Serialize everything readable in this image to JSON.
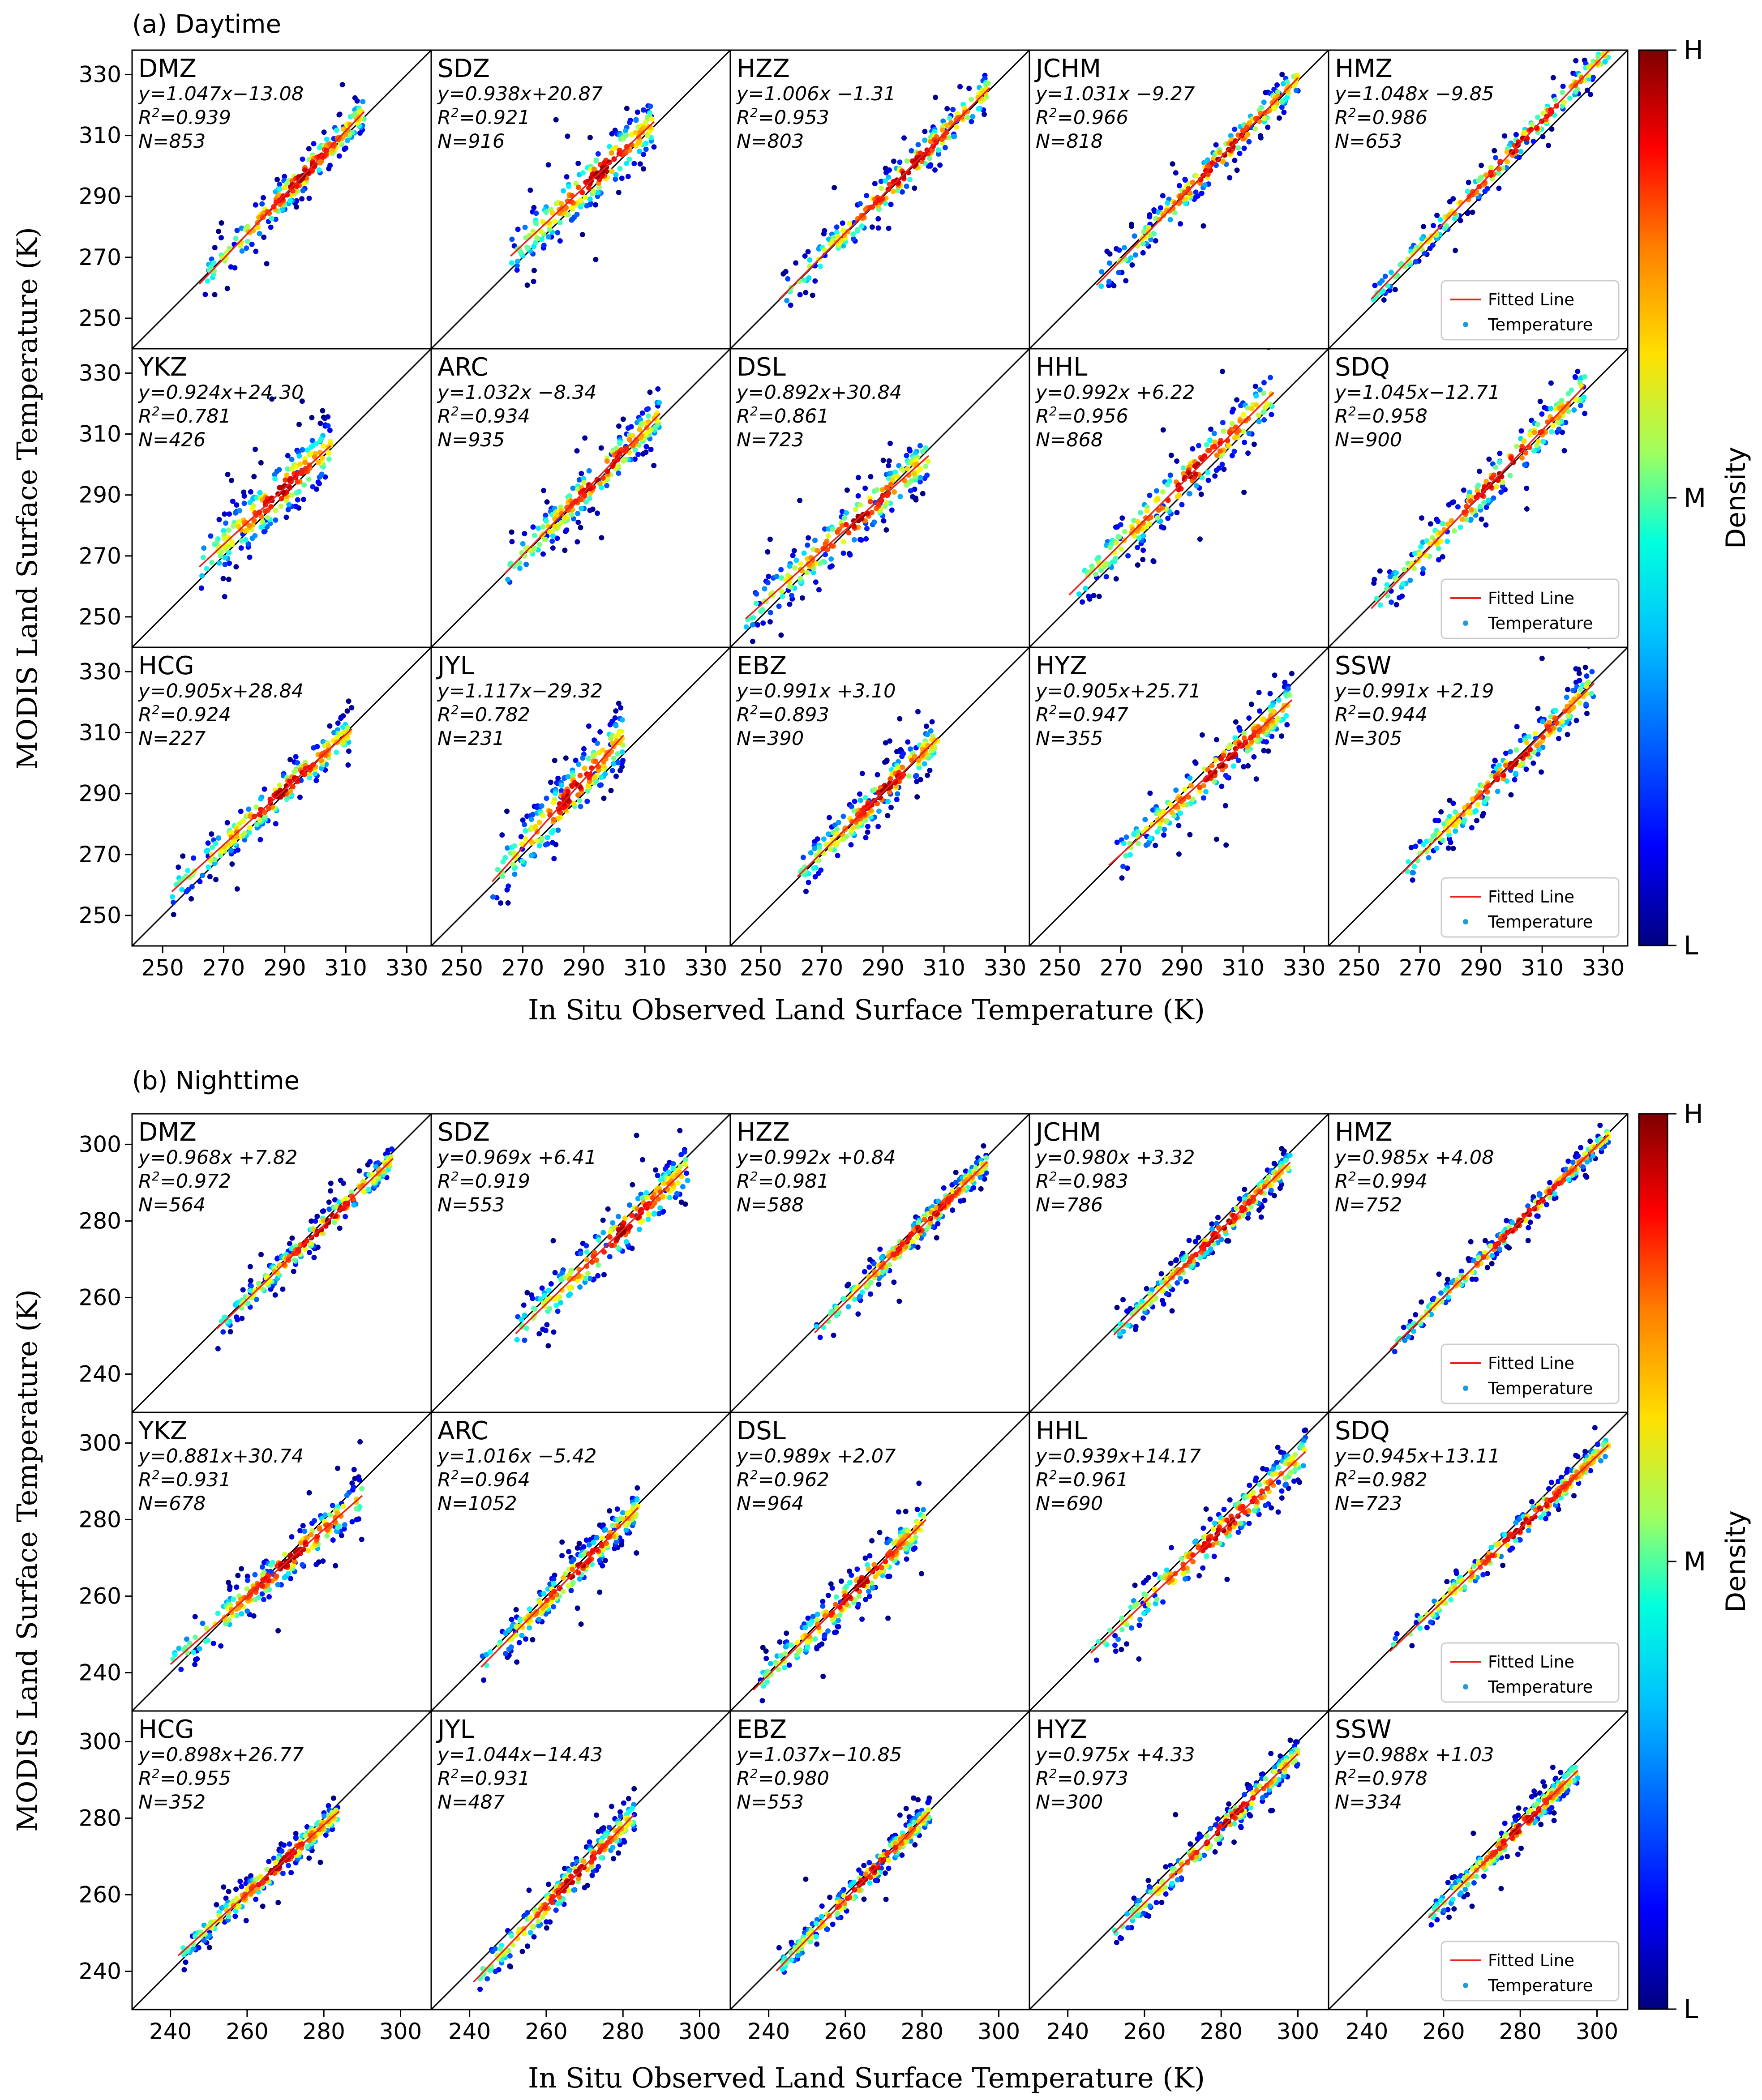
{
  "figure": {
    "x_label": "In Situ Observed Land Surface Temperature (K)",
    "y_label": "MODIS Land Surface Temperature (K)",
    "colorbar_title": "Density",
    "colorbar_labels": [
      "H",
      "M",
      "L"
    ],
    "legend_entries": [
      "Fitted Line",
      "Temperature"
    ],
    "colors": {
      "fitted_line": "#e8231f",
      "one_to_one": "#000000",
      "frame": "#000000"
    },
    "colormap": [
      "#00007f",
      "#0000ff",
      "#007fff",
      "#00ffff",
      "#7fff7f",
      "#ffff00",
      "#ff7f00",
      "#ff0000",
      "#7f0000"
    ]
  },
  "chart_data": [
    {
      "type": "scatter",
      "title": "(a) Daytime",
      "xlabel": "In Situ Observed Land Surface Temperature (K)",
      "ylabel": "MODIS Land Surface Temperature (K)",
      "xlim": [
        240,
        338
      ],
      "ylim": [
        240,
        338
      ],
      "xticks": [
        250,
        270,
        290,
        310,
        330
      ],
      "yticks": [
        250,
        270,
        290,
        310,
        330
      ],
      "stations": [
        {
          "name": "DMZ",
          "equation": "y=1.047x−13.08",
          "r2": "0.939",
          "n": "853",
          "slope": 1.047,
          "intercept": -13.08,
          "xmin": 262,
          "xmax": 316,
          "spread": 3.5
        },
        {
          "name": "SDZ",
          "equation": "y=0.938x+20.87",
          "r2": "0.921",
          "n": "916",
          "slope": 0.938,
          "intercept": 20.87,
          "xmin": 266,
          "xmax": 313,
          "spread": 5
        },
        {
          "name": "HZZ",
          "equation": "y=1.006x −1.31",
          "r2": "0.953",
          "n": "803",
          "slope": 1.006,
          "intercept": -1.31,
          "xmin": 256,
          "xmax": 325,
          "spread": 3.5
        },
        {
          "name": "JCHM",
          "equation": "y=1.031x −9.27",
          "r2": "0.966",
          "n": "818",
          "slope": 1.031,
          "intercept": -9.27,
          "xmin": 262,
          "xmax": 328,
          "spread": 3
        },
        {
          "name": "HMZ",
          "equation": "y=1.048x −9.85",
          "r2": "0.986",
          "n": "653",
          "slope": 1.048,
          "intercept": -9.85,
          "xmin": 254,
          "xmax": 333,
          "spread": 2.5
        },
        {
          "name": "YKZ",
          "equation": "y=0.924x+24.30",
          "r2": "0.781",
          "n": "426",
          "slope": 0.924,
          "intercept": 24.3,
          "xmin": 262,
          "xmax": 305,
          "spread": 5.5
        },
        {
          "name": "ARC",
          "equation": "y=1.032x −8.34",
          "r2": "0.934",
          "n": "935",
          "slope": 1.032,
          "intercept": -8.34,
          "xmin": 264,
          "xmax": 315,
          "spread": 4
        },
        {
          "name": "DSL",
          "equation": "y=0.892x+30.84",
          "r2": "0.861",
          "n": "723",
          "slope": 0.892,
          "intercept": 30.84,
          "xmin": 245,
          "xmax": 305,
          "spread": 4.5
        },
        {
          "name": "HHL",
          "equation": "y=0.992x +6.22",
          "r2": "0.956",
          "n": "868",
          "slope": 0.992,
          "intercept": 6.22,
          "xmin": 253,
          "xmax": 320,
          "spread": 4.5
        },
        {
          "name": "SDQ",
          "equation": "y=1.045x−12.71",
          "r2": "0.958",
          "n": "900",
          "slope": 1.045,
          "intercept": -12.71,
          "xmin": 254,
          "xmax": 324,
          "spread": 4
        },
        {
          "name": "HCG",
          "equation": "y=0.905x+28.84",
          "r2": "0.924",
          "n": "227",
          "slope": 0.905,
          "intercept": 28.84,
          "xmin": 253,
          "xmax": 312,
          "spread": 3.5
        },
        {
          "name": "JYL",
          "equation": "y=1.117x−29.32",
          "r2": "0.782",
          "n": "231",
          "slope": 1.117,
          "intercept": -29.32,
          "xmin": 260,
          "xmax": 303,
          "spread": 5.5
        },
        {
          "name": "EBZ",
          "equation": "y=0.991x +3.10",
          "r2": "0.893",
          "n": "390",
          "slope": 0.991,
          "intercept": 3.1,
          "xmin": 262,
          "xmax": 308,
          "spread": 4
        },
        {
          "name": "HYZ",
          "equation": "y=0.905x+25.71",
          "r2": "0.947",
          "n": "355",
          "slope": 0.905,
          "intercept": 25.71,
          "xmin": 266,
          "xmax": 326,
          "spread": 4
        },
        {
          "name": "SSW",
          "equation": "y=0.991x +2.19",
          "r2": "0.944",
          "n": "305",
          "slope": 0.991,
          "intercept": 2.19,
          "xmin": 264,
          "xmax": 327,
          "spread": 3.5
        }
      ]
    },
    {
      "type": "scatter",
      "title": "(b) Nighttime",
      "xlabel": "In Situ Observed Land Surface Temperature (K)",
      "ylabel": "MODIS Land Surface Temperature (K)",
      "xlim": [
        230,
        308
      ],
      "ylim": [
        230,
        308
      ],
      "xticks": [
        240,
        260,
        280,
        300
      ],
      "yticks": [
        240,
        260,
        280,
        300
      ],
      "stations": [
        {
          "name": "DMZ",
          "equation": "y=0.968x +7.82",
          "r2": "0.972",
          "n": "564",
          "slope": 0.968,
          "intercept": 7.82,
          "xmin": 252,
          "xmax": 298,
          "spread": 2
        },
        {
          "name": "SDZ",
          "equation": "y=0.969x +6.41",
          "r2": "0.919",
          "n": "553",
          "slope": 0.969,
          "intercept": 6.41,
          "xmin": 252,
          "xmax": 297,
          "spread": 3.5
        },
        {
          "name": "HZZ",
          "equation": "y=0.992x +0.84",
          "r2": "0.981",
          "n": "588",
          "slope": 0.992,
          "intercept": 0.84,
          "xmin": 252,
          "xmax": 297,
          "spread": 2
        },
        {
          "name": "JCHM",
          "equation": "y=0.980x +3.32",
          "r2": "0.983",
          "n": "786",
          "slope": 0.98,
          "intercept": 3.32,
          "xmin": 252,
          "xmax": 298,
          "spread": 2
        },
        {
          "name": "HMZ",
          "equation": "y=0.985x +4.08",
          "r2": "0.994",
          "n": "752",
          "slope": 0.985,
          "intercept": 4.08,
          "xmin": 246,
          "xmax": 303,
          "spread": 1.5
        },
        {
          "name": "YKZ",
          "equation": "y=0.881x+30.74",
          "r2": "0.931",
          "n": "678",
          "slope": 0.881,
          "intercept": 30.74,
          "xmin": 240,
          "xmax": 290,
          "spread": 3
        },
        {
          "name": "ARC",
          "equation": "y=1.016x −5.42",
          "r2": "0.964",
          "n": "1052",
          "slope": 1.016,
          "intercept": -5.42,
          "xmin": 243,
          "xmax": 284,
          "spread": 2.5
        },
        {
          "name": "DSL",
          "equation": "y=0.989x +2.07",
          "r2": "0.962",
          "n": "964",
          "slope": 0.989,
          "intercept": 2.07,
          "xmin": 236,
          "xmax": 281,
          "spread": 3
        },
        {
          "name": "HHL",
          "equation": "y=0.939x+14.17",
          "r2": "0.961",
          "n": "690",
          "slope": 0.939,
          "intercept": 14.17,
          "xmin": 246,
          "xmax": 302,
          "spread": 3
        },
        {
          "name": "SDQ",
          "equation": "y=0.945x+13.11",
          "r2": "0.982",
          "n": "723",
          "slope": 0.945,
          "intercept": 13.11,
          "xmin": 246,
          "xmax": 303,
          "spread": 2
        },
        {
          "name": "HCG",
          "equation": "y=0.898x+26.77",
          "r2": "0.955",
          "n": "352",
          "slope": 0.898,
          "intercept": 26.77,
          "xmin": 242,
          "xmax": 284,
          "spread": 2
        },
        {
          "name": "JYL",
          "equation": "y=1.044x−14.43",
          "r2": "0.931",
          "n": "487",
          "slope": 1.044,
          "intercept": -14.43,
          "xmin": 241,
          "xmax": 283,
          "spread": 2.5
        },
        {
          "name": "EBZ",
          "equation": "y=1.037x−10.85",
          "r2": "0.980",
          "n": "553",
          "slope": 1.037,
          "intercept": -10.85,
          "xmin": 242,
          "xmax": 282,
          "spread": 2
        },
        {
          "name": "HYZ",
          "equation": "y=0.975x +4.33",
          "r2": "0.973",
          "n": "300",
          "slope": 0.975,
          "intercept": 4.33,
          "xmin": 252,
          "xmax": 300,
          "spread": 2
        },
        {
          "name": "SSW",
          "equation": "y=0.988x +1.03",
          "r2": "0.978",
          "n": "334",
          "slope": 0.988,
          "intercept": 1.03,
          "xmin": 256,
          "xmax": 295,
          "spread": 2
        }
      ]
    }
  ]
}
